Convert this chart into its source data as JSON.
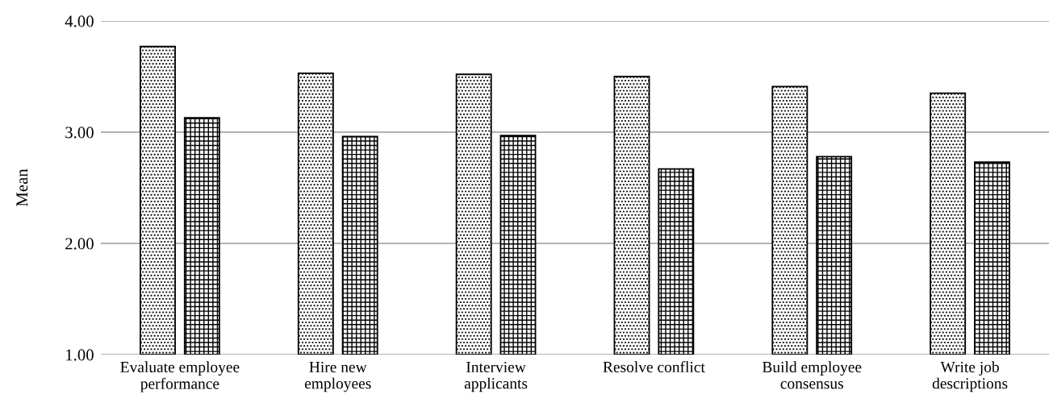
{
  "chart_data": {
    "type": "bar",
    "ylabel": "Mean",
    "categories": [
      "Evaluate employee\nperformance",
      "Hire new\nemployees",
      "Interview\napplicants",
      "Resolve conflict",
      "Build employee\nconsensus",
      "Write job\ndescriptions"
    ],
    "series": [
      {
        "values": [
          3.77,
          3.53,
          3.52,
          3.5,
          3.41,
          3.35
        ]
      },
      {
        "values": [
          3.13,
          2.96,
          2.97,
          2.67,
          2.78,
          2.73
        ]
      }
    ],
    "ylim": [
      1,
      4
    ],
    "yticks": [
      {
        "value": 1,
        "label": "1.00"
      },
      {
        "value": 2,
        "label": "2.00"
      },
      {
        "value": 3,
        "label": "3.00"
      },
      {
        "value": 4,
        "label": "4.00"
      }
    ],
    "grid": "y"
  }
}
